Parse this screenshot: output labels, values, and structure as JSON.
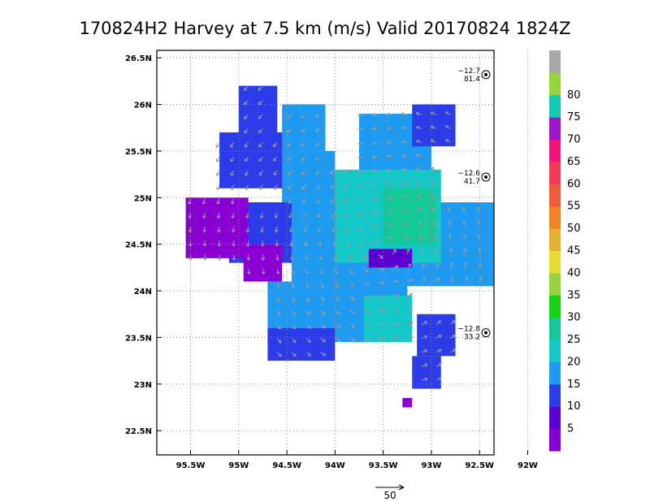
{
  "chart_data": {
    "type": "heatmap",
    "title": "170824H2 Harvey at 7.5 km (m/s) Valid 20170824 1824Z",
    "x_tick_labels": [
      "95.5W",
      "95W",
      "94.5W",
      "94W",
      "93.5W",
      "93W",
      "92.5W",
      "92W"
    ],
    "x_tick_values": [
      -95.5,
      -95.0,
      -94.5,
      -94.0,
      -93.5,
      -93.0,
      -92.5,
      -92.0
    ],
    "y_tick_labels": [
      "22.5N",
      "23N",
      "23.5N",
      "24N",
      "24.5N",
      "25N",
      "25.5N",
      "26N",
      "26.5N"
    ],
    "y_tick_values": [
      22.5,
      23.0,
      23.5,
      24.0,
      24.5,
      25.0,
      25.5,
      26.0,
      26.5
    ],
    "xlim": [
      -95.85,
      -92.35
    ],
    "ylim": [
      22.24,
      26.58
    ],
    "grid": true,
    "colorbar": {
      "tick_labels": [
        "5",
        "10",
        "15",
        "20",
        "25",
        "30",
        "35",
        "40",
        "45",
        "50",
        "55",
        "60",
        "65",
        "70",
        "75",
        "80"
      ],
      "bins": [
        {
          "min": 0,
          "max": 5,
          "color": "#8a00d4"
        },
        {
          "min": 5,
          "max": 10,
          "color": "#5b00cf"
        },
        {
          "min": 10,
          "max": 15,
          "color": "#2b3ce8"
        },
        {
          "min": 15,
          "max": 20,
          "color": "#1e9bf0"
        },
        {
          "min": 20,
          "max": 25,
          "color": "#14c8c8"
        },
        {
          "min": 25,
          "max": 30,
          "color": "#14c89a"
        },
        {
          "min": 30,
          "max": 35,
          "color": "#14d214"
        },
        {
          "min": 35,
          "max": 40,
          "color": "#96d23c"
        },
        {
          "min": 40,
          "max": 45,
          "color": "#e6dc32"
        },
        {
          "min": 45,
          "max": 50,
          "color": "#e6af2d"
        },
        {
          "min": 50,
          "max": 55,
          "color": "#f08228"
        },
        {
          "min": 55,
          "max": 60,
          "color": "#f05a37"
        },
        {
          "min": 60,
          "max": 65,
          "color": "#f03c5a"
        },
        {
          "min": 65,
          "max": 70,
          "color": "#f0147d"
        },
        {
          "min": 70,
          "max": 75,
          "color": "#a014c8"
        },
        {
          "min": 75,
          "max": 80,
          "color": "#14c8b4"
        },
        {
          "min": 80,
          "max": 85,
          "color": "#96d23c"
        },
        {
          "min": 85,
          "max": 90,
          "color": "#a8a8a8"
        }
      ]
    },
    "regions": [
      {
        "lon": [
          -95.2,
          -94.4
        ],
        "lat": [
          25.1,
          25.7
        ],
        "speed": 12
      },
      {
        "lon": [
          -95.0,
          -94.6
        ],
        "lat": [
          25.7,
          26.2
        ],
        "speed": 12
      },
      {
        "lon": [
          -94.55,
          -94.1
        ],
        "lat": [
          25.5,
          26.0
        ],
        "speed": 17
      },
      {
        "lon": [
          -94.55,
          -94.0
        ],
        "lat": [
          24.9,
          25.5
        ],
        "speed": 17
      },
      {
        "lon": [
          -93.75,
          -93.0
        ],
        "lat": [
          25.1,
          25.9
        ],
        "speed": 17
      },
      {
        "lon": [
          -93.2,
          -92.75
        ],
        "lat": [
          25.55,
          26.0
        ],
        "speed": 12
      },
      {
        "lon": [
          -95.1,
          -94.2
        ],
        "lat": [
          24.3,
          24.95
        ],
        "speed": 12
      },
      {
        "lon": [
          -95.55,
          -94.9
        ],
        "lat": [
          24.35,
          25.0
        ],
        "speed": 3
      },
      {
        "lon": [
          -94.95,
          -94.55
        ],
        "lat": [
          24.1,
          24.5
        ],
        "speed": 3
      },
      {
        "lon": [
          -94.45,
          -92.35
        ],
        "lat": [
          24.05,
          24.95
        ],
        "speed": 17
      },
      {
        "lon": [
          -94.0,
          -92.9
        ],
        "lat": [
          24.3,
          25.3
        ],
        "speed": 22
      },
      {
        "lon": [
          -93.5,
          -92.95
        ],
        "lat": [
          24.5,
          25.1
        ],
        "speed": 27
      },
      {
        "lon": [
          -94.1,
          -93.25
        ],
        "lat": [
          23.8,
          24.3
        ],
        "speed": 17
      },
      {
        "lon": [
          -93.8,
          -93.2
        ],
        "lat": [
          23.45,
          23.95
        ],
        "speed": 22
      },
      {
        "lon": [
          -94.7,
          -93.7
        ],
        "lat": [
          23.45,
          24.1
        ],
        "speed": 17
      },
      {
        "lon": [
          -94.7,
          -94.0
        ],
        "lat": [
          23.25,
          23.6
        ],
        "speed": 12
      },
      {
        "lon": [
          -93.15,
          -92.75
        ],
        "lat": [
          23.3,
          23.75
        ],
        "speed": 12
      },
      {
        "lon": [
          -93.2,
          -92.9
        ],
        "lat": [
          22.95,
          23.3
        ],
        "speed": 12
      },
      {
        "lon": [
          -93.65,
          -93.2
        ],
        "lat": [
          24.25,
          24.45
        ],
        "speed": 8
      },
      {
        "lon": [
          -93.3,
          -93.2
        ],
        "lat": [
          22.75,
          22.85
        ],
        "speed": 3
      }
    ],
    "wind_vectors": {
      "center_lon": -93.5,
      "center_lat": 24.45,
      "rotation": "cyclonic (counter-clockwise)",
      "reference_speed_ms": 50
    },
    "station_observations": [
      {
        "lon": -92.0,
        "lat": 26.32,
        "temp": "−12.7",
        "value": "81.4"
      },
      {
        "lon": -91.75,
        "lat": 25.22,
        "temp": "−12.6",
        "value": "41.7"
      },
      {
        "lon": -91.75,
        "lat": 23.55,
        "temp": "−12.8",
        "value": "33.2"
      }
    ]
  },
  "reference_label": "50"
}
